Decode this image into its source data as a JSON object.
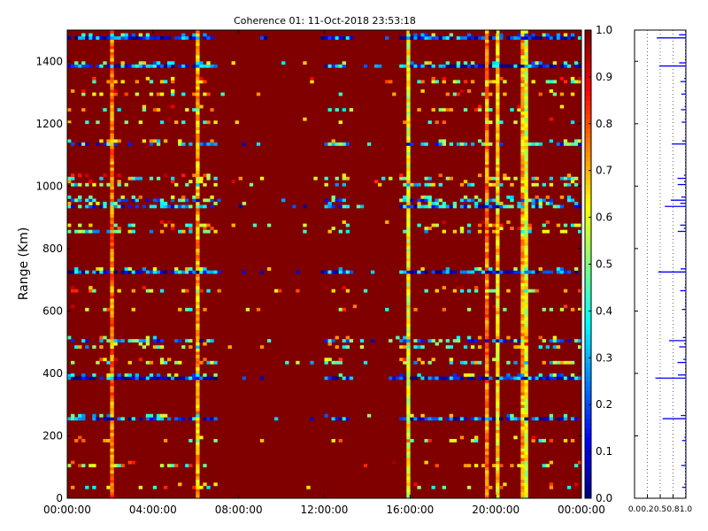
{
  "chart_data": {
    "type": "heatmap",
    "title": "Coherence 01: 11-Oct-2018 23:53:18",
    "xlabel": "",
    "ylabel": "Range (Km)",
    "xlim_hours": [
      0,
      24
    ],
    "ylim": [
      0,
      1500
    ],
    "x_tick_labels": [
      "00:00:00",
      "04:00:00",
      "08:00:00",
      "12:00:00",
      "16:00:00",
      "20:00:00",
      "00:00:00"
    ],
    "x_tick_hours": [
      0,
      4,
      8,
      12,
      16,
      20,
      24
    ],
    "y_ticks": [
      0,
      200,
      400,
      600,
      800,
      1000,
      1200,
      1400
    ],
    "colorbar": {
      "colormap": "jet",
      "range": [
        0,
        1
      ],
      "ticks": [
        "0.0",
        "0.1",
        "0.2",
        "0.3",
        "0.4",
        "0.5",
        "0.6",
        "0.7",
        "0.8",
        "0.9",
        "1.0"
      ]
    },
    "background_value": 1.0,
    "low_coherence_bands_km": [
      {
        "range": 1475,
        "level": 0.15,
        "density": 0.9
      },
      {
        "range": 1385,
        "level": 0.2,
        "density": 0.9
      },
      {
        "range": 1330,
        "level": 0.6,
        "density": 0.3
      },
      {
        "range": 1290,
        "level": 0.6,
        "density": 0.3
      },
      {
        "range": 1240,
        "level": 0.6,
        "density": 0.2
      },
      {
        "range": 1200,
        "level": 0.6,
        "density": 0.25
      },
      {
        "range": 1135,
        "level": 0.3,
        "density": 0.6
      },
      {
        "range": 1020,
        "level": 0.5,
        "density": 0.45
      },
      {
        "range": 1000,
        "level": 0.5,
        "density": 0.35
      },
      {
        "range": 950,
        "level": 0.3,
        "density": 0.6
      },
      {
        "range": 930,
        "level": 0.25,
        "density": 0.7
      },
      {
        "range": 870,
        "level": 0.6,
        "density": 0.3
      },
      {
        "range": 850,
        "level": 0.5,
        "density": 0.4
      },
      {
        "range": 725,
        "level": 0.2,
        "density": 0.85
      },
      {
        "range": 665,
        "level": 0.6,
        "density": 0.3
      },
      {
        "range": 600,
        "level": 0.6,
        "density": 0.2
      },
      {
        "range": 500,
        "level": 0.3,
        "density": 0.6
      },
      {
        "range": 480,
        "level": 0.5,
        "density": 0.35
      },
      {
        "range": 435,
        "level": 0.5,
        "density": 0.4
      },
      {
        "range": 380,
        "level": 0.15,
        "density": 0.9
      },
      {
        "range": 255,
        "level": 0.2,
        "density": 0.8
      },
      {
        "range": 180,
        "level": 0.6,
        "density": 0.25
      },
      {
        "range": 100,
        "level": 0.6,
        "density": 0.3
      },
      {
        "range": 30,
        "level": 0.6,
        "density": 0.2
      }
    ],
    "active_periods_hours": [
      [
        0,
        7
      ],
      [
        12,
        13.2
      ],
      [
        15.5,
        24
      ]
    ],
    "vertical_stripes_hours": [
      {
        "t": 2.0,
        "level": 0.75
      },
      {
        "t": 6.0,
        "level": 0.7
      },
      {
        "t": 15.9,
        "level": 0.6
      },
      {
        "t": 19.6,
        "level": 0.75
      },
      {
        "t": 20.15,
        "level": 0.65
      },
      {
        "t": 21.2,
        "level": 0.7
      },
      {
        "t": 21.4,
        "level": 0.6
      }
    ],
    "profile_panel": {
      "x_tick_labels": [
        "0.0",
        "0.2",
        "0.5",
        "0.8",
        "1.0"
      ],
      "x_ticks": [
        0,
        0.25,
        0.5,
        0.75,
        1.0
      ],
      "color": "#0000ff"
    }
  }
}
